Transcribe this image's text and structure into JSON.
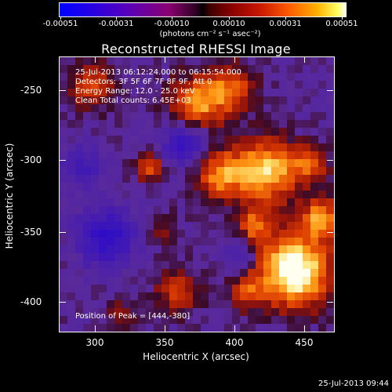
{
  "colorbar": {
    "tick_labels": [
      "-0.00051",
      "-0.00031",
      "-0.00010",
      "0.00010",
      "0.00031",
      "0.00051"
    ],
    "units": "(photons cm⁻² s⁻¹ asec⁻²)"
  },
  "title": "Reconstructed RHESSI Image",
  "info": {
    "line1": "25-Jul-2013 06:12:24.000 to 06:15:54.000",
    "line2": "Detectors: 3F 5F 6F 7F 8F 9F, Att 0",
    "line3": "Energy Range: 12.0 - 25.0 keV",
    "line4": "Clean     Total counts: 6.45E+03"
  },
  "peak_label": "Position of Peak = [444,-380]",
  "axes": {
    "xlabel": "Heliocentric X (arcsec)",
    "ylabel": "Heliocentric Y (arcsec)",
    "x_ticks": [
      "300",
      "350",
      "400",
      "450"
    ],
    "y_ticks": [
      "-250",
      "-300",
      "-350",
      "-400"
    ]
  },
  "timestamp": "25-Jul-2013 09:44"
}
